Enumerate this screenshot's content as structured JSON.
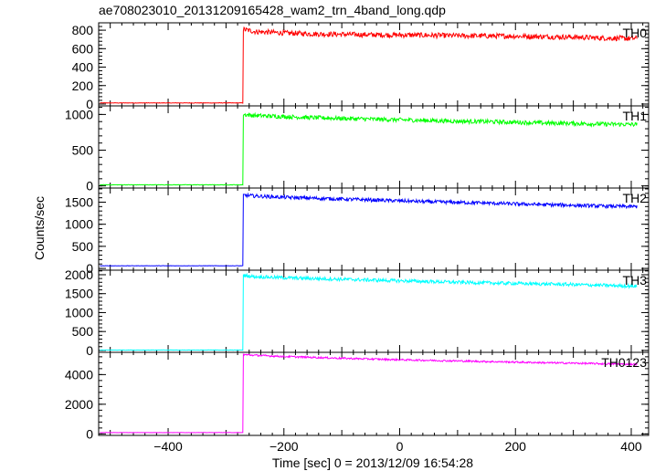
{
  "title": "ae708023010_20131209165428_wam2_trn_4band_long.qdp",
  "ylabel": "Counts/sec",
  "xlabel": "Time [sec] 0 = 2013/12/09 16:54:28",
  "chart_data": [
    {
      "type": "line",
      "panel": "TH0",
      "label": "TH0",
      "color": "#ff0000",
      "xlim": [
        -520,
        430
      ],
      "ylim": [
        -20,
        880
      ],
      "yticks": [
        0,
        200,
        400,
        600,
        800
      ],
      "x": [
        -520,
        -275,
        -271,
        -271,
        -250,
        -200,
        -150,
        -100,
        -50,
        0,
        50,
        100,
        150,
        200,
        250,
        300,
        350,
        400,
        410
      ],
      "y": [
        12,
        12,
        12,
        810,
        785,
        770,
        760,
        755,
        750,
        748,
        745,
        740,
        738,
        735,
        730,
        725,
        715,
        710,
        712
      ],
      "noise": 28
    },
    {
      "type": "line",
      "panel": "TH1",
      "label": "TH1",
      "color": "#00ff00",
      "xlim": [
        -520,
        430
      ],
      "ylim": [
        -30,
        1120
      ],
      "yticks": [
        0,
        500,
        1000
      ],
      "x": [
        -520,
        -275,
        -271,
        -271,
        -250,
        -200,
        -150,
        -100,
        -50,
        0,
        50,
        100,
        150,
        200,
        250,
        300,
        350,
        400,
        410
      ],
      "y": [
        15,
        15,
        15,
        1000,
        985,
        970,
        955,
        945,
        935,
        925,
        915,
        905,
        900,
        890,
        880,
        875,
        865,
        860,
        860
      ],
      "noise": 30
    },
    {
      "type": "line",
      "panel": "TH2",
      "label": "TH2",
      "color": "#0000ff",
      "xlim": [
        -520,
        430
      ],
      "ylim": [
        -40,
        1820
      ],
      "yticks": [
        0,
        500,
        1000,
        1500
      ],
      "x": [
        -520,
        -275,
        -271,
        -271,
        -250,
        -200,
        -150,
        -100,
        -50,
        0,
        50,
        100,
        150,
        200,
        250,
        300,
        350,
        400,
        410
      ],
      "y": [
        60,
        60,
        60,
        1660,
        1640,
        1610,
        1590,
        1570,
        1550,
        1530,
        1510,
        1495,
        1480,
        1460,
        1445,
        1430,
        1410,
        1400,
        1400
      ],
      "noise": 40
    },
    {
      "type": "line",
      "panel": "TH3",
      "label": "TH3",
      "color": "#00ffff",
      "xlim": [
        -520,
        430
      ],
      "ylim": [
        -50,
        2120
      ],
      "yticks": [
        0,
        500,
        1000,
        1500,
        2000
      ],
      "x": [
        -520,
        -275,
        -271,
        -271,
        -250,
        -200,
        -150,
        -100,
        -50,
        0,
        50,
        100,
        150,
        200,
        250,
        300,
        350,
        400,
        410
      ],
      "y": [
        10,
        10,
        10,
        1980,
        1950,
        1920,
        1900,
        1880,
        1860,
        1840,
        1820,
        1800,
        1785,
        1770,
        1755,
        1740,
        1720,
        1700,
        1700
      ],
      "noise": 45
    },
    {
      "type": "line",
      "panel": "TH0123",
      "label": "TH0123",
      "color": "#ff00ff",
      "xlim": [
        -520,
        430
      ],
      "ylim": [
        -100,
        5500
      ],
      "yticks": [
        0,
        2000,
        4000
      ],
      "x": [
        -520,
        -275,
        -271,
        -271,
        -250,
        -200,
        -150,
        -100,
        -50,
        0,
        50,
        100,
        150,
        200,
        250,
        300,
        350,
        400,
        410
      ],
      "y": [
        90,
        90,
        90,
        5350,
        5300,
        5220,
        5160,
        5100,
        5050,
        5000,
        4960,
        4920,
        4880,
        4840,
        4800,
        4770,
        4730,
        4700,
        4700
      ],
      "noise": 60
    }
  ],
  "xaxis": {
    "xlim": [
      -520,
      430
    ],
    "ticks": [
      -400,
      -200,
      0,
      200,
      400
    ]
  }
}
